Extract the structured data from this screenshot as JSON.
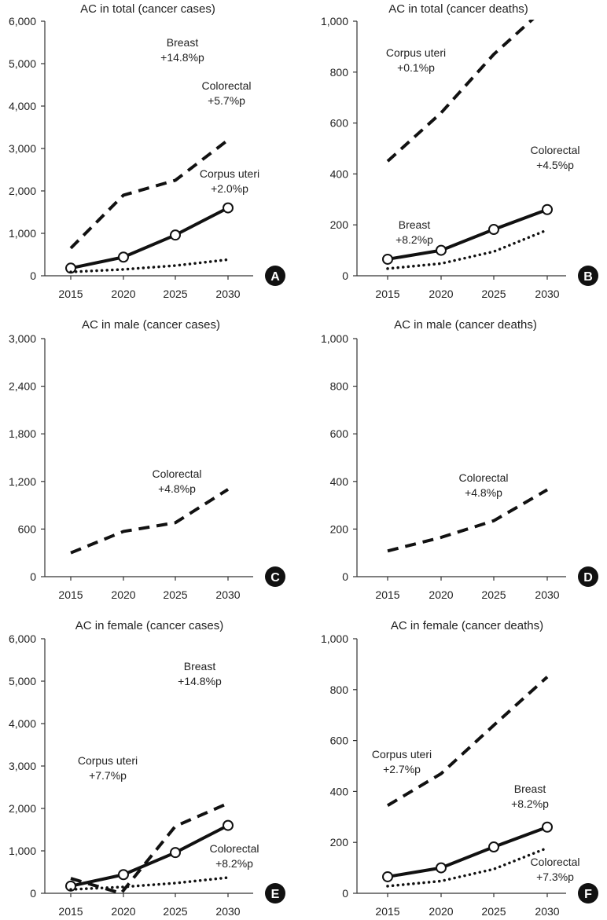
{
  "figure": {
    "x_categories": [
      "2015",
      "2020",
      "2025",
      "2030"
    ]
  },
  "chart_data": [
    {
      "type": "line",
      "badge": "A",
      "title": "AC in total (cancer cases)",
      "ylim": [
        0,
        6000
      ],
      "yticks": [
        0,
        1000,
        2000,
        3000,
        4000,
        5000,
        6000
      ],
      "ytick_labels": [
        "0",
        "1,000",
        "2,000",
        "3,000",
        "4,000",
        "5,000",
        "6,000"
      ],
      "x": [
        "2015",
        "2020",
        "2025",
        "2030"
      ],
      "series": [
        {
          "name": "Breast",
          "style": "solid-marker",
          "values": [
            180,
            440,
            960,
            1600
          ]
        },
        {
          "name": "Colorectal",
          "style": "dashed",
          "values": [
            650,
            1900,
            2250,
            3200
          ]
        },
        {
          "name": "Corpus uteri",
          "style": "dotted",
          "values": [
            90,
            150,
            240,
            380
          ]
        }
      ],
      "annotations": [
        {
          "name": "Breast",
          "line1": "Breast",
          "line2": "+14.8%p"
        },
        {
          "name": "Colorectal",
          "line1": "Colorectal",
          "line2": "+5.7%p"
        },
        {
          "name": "Corpus uteri",
          "line1": "Corpus uteri",
          "line2": "+2.0%p"
        }
      ]
    },
    {
      "type": "line",
      "badge": "B",
      "title": "AC in total (cancer deaths)",
      "ylim": [
        0,
        1000
      ],
      "yticks": [
        0,
        200,
        400,
        600,
        800,
        1000
      ],
      "ytick_labels": [
        "0",
        "200",
        "400",
        "600",
        "800",
        "1,000"
      ],
      "x": [
        "2015",
        "2020",
        "2025",
        "2030"
      ],
      "series": [
        {
          "name": "Colorectal",
          "style": "dashed",
          "values": [
            450,
            640,
            870,
            1060
          ]
        },
        {
          "name": "Breast",
          "style": "solid-marker",
          "values": [
            65,
            100,
            182,
            260
          ]
        },
        {
          "name": "Corpus uteri",
          "style": "dotted",
          "values": [
            28,
            48,
            95,
            180
          ]
        }
      ],
      "annotations": [
        {
          "name": "Corpus uteri",
          "line1": "Corpus uteri",
          "line2": "+0.1%p"
        },
        {
          "name": "Colorectal",
          "line1": "Colorectal",
          "line2": "+4.5%p"
        },
        {
          "name": "Breast",
          "line1": "Breast",
          "line2": "+8.2%p"
        }
      ]
    },
    {
      "type": "line",
      "badge": "C",
      "title": "AC in male (cancer cases)",
      "ylim": [
        0,
        3000
      ],
      "yticks": [
        0,
        600,
        1200,
        1800,
        2400,
        3000
      ],
      "ytick_labels": [
        "0",
        "600",
        "1,200",
        "1,800",
        "2,400",
        "3,000"
      ],
      "x": [
        "2015",
        "2020",
        "2025",
        "2030"
      ],
      "series": [
        {
          "name": "Colorectal",
          "style": "dashed",
          "values": [
            300,
            570,
            680,
            1100
          ]
        }
      ],
      "annotations": [
        {
          "name": "Colorectal",
          "line1": "Colorectal",
          "line2": "+4.8%p"
        }
      ]
    },
    {
      "type": "line",
      "badge": "D",
      "title": "AC in male (cancer deaths)",
      "ylim": [
        0,
        1000
      ],
      "yticks": [
        0,
        200,
        400,
        600,
        800,
        1000
      ],
      "ytick_labels": [
        "0",
        "200",
        "400",
        "600",
        "800",
        "1,000"
      ],
      "x": [
        "2015",
        "2020",
        "2025",
        "2030"
      ],
      "series": [
        {
          "name": "Colorectal",
          "style": "dashed",
          "values": [
            108,
            165,
            235,
            365
          ]
        }
      ],
      "annotations": [
        {
          "name": "Colorectal",
          "line1": "Colorectal",
          "line2": "+4.8%p"
        }
      ]
    },
    {
      "type": "line",
      "badge": "E",
      "title": "AC in female (cancer cases)",
      "ylim": [
        0,
        6000
      ],
      "yticks": [
        0,
        1000,
        2000,
        3000,
        4000,
        5000,
        6000
      ],
      "ytick_labels": [
        "0",
        "1,000",
        "2,000",
        "3,000",
        "4,000",
        "5,000",
        "6,000"
      ],
      "x": [
        "2015",
        "2020",
        "2025",
        "2030"
      ],
      "series": [
        {
          "name": "Breast",
          "style": "solid-marker",
          "values": [
            170,
            440,
            960,
            1600
          ]
        },
        {
          "name": "Corpus uteri",
          "style": "dashed",
          "values": [
            350,
            0,
            1580,
            2120
          ]
        },
        {
          "name": "Colorectal",
          "style": "dotted",
          "values": [
            90,
            150,
            240,
            370
          ]
        }
      ],
      "annotations": [
        {
          "name": "Breast",
          "line1": "Breast",
          "line2": "+14.8%p"
        },
        {
          "name": "Corpus uteri",
          "line1": "Corpus uteri",
          "line2": "+7.7%p"
        },
        {
          "name": "Colorectal",
          "line1": "Colorectal",
          "line2": "+8.2%p"
        }
      ]
    },
    {
      "type": "line",
      "badge": "F",
      "title": "AC in female (cancer deaths)",
      "ylim": [
        0,
        1000
      ],
      "yticks": [
        0,
        200,
        400,
        600,
        800,
        1000
      ],
      "ytick_labels": [
        "0",
        "200",
        "400",
        "600",
        "800",
        "1,000"
      ],
      "x": [
        "2015",
        "2020",
        "2025",
        "2030"
      ],
      "series": [
        {
          "name": "Corpus uteri",
          "style": "dashed",
          "values": [
            345,
            470,
            660,
            850
          ]
        },
        {
          "name": "Breast",
          "style": "solid-marker",
          "values": [
            65,
            100,
            182,
            260
          ]
        },
        {
          "name": "Colorectal",
          "style": "dotted",
          "values": [
            28,
            48,
            95,
            178
          ]
        }
      ],
      "annotations": [
        {
          "name": "Corpus uteri",
          "line1": "Corpus uteri",
          "line2": "+2.7%p"
        },
        {
          "name": "Breast",
          "line1": "Breast",
          "line2": "+8.2%p"
        },
        {
          "name": "Colorectal",
          "line1": "Colorectal",
          "line2": "+7.3%p"
        }
      ]
    }
  ]
}
